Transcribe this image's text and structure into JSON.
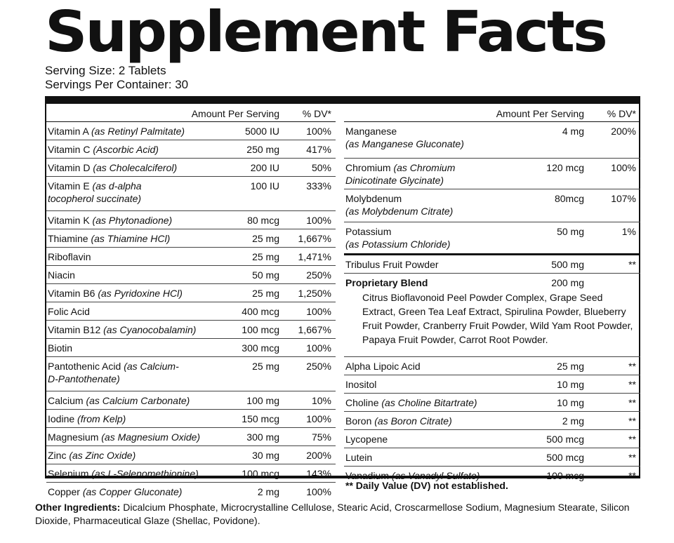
{
  "title": "Supplement Facts",
  "serving_size": "Serving Size: 2 Tablets",
  "servings_per_container": "Servings Per Container: 30",
  "header": {
    "amount": "Amount Per Serving",
    "dv": "% DV*"
  },
  "left_rows": [
    {
      "name": "Vitamin A ",
      "sub": "(as Retinyl Palmitate)",
      "amount": "5000 IU",
      "dv": "100%"
    },
    {
      "name": "Vitamin C ",
      "sub": "(Ascorbic Acid)",
      "amount": "250 mg",
      "dv": "417%"
    },
    {
      "name": "Vitamin D ",
      "sub": "(as Cholecalciferol)",
      "amount": "200 IU",
      "dv": "50%"
    },
    {
      "name": "Vitamin E ",
      "sub": "(as d-alpha",
      "sub2": "tocopherol succinate)",
      "amount": "100 IU",
      "dv": "333%"
    },
    {
      "name": "Vitamin K ",
      "sub": "(as Phytonadione)",
      "amount": "80 mcg",
      "dv": "100%"
    },
    {
      "name": "Thiamine ",
      "sub": "(as Thiamine HCl)",
      "amount": "25 mg",
      "dv": "1,667%"
    },
    {
      "name": "Riboflavin",
      "sub": "",
      "amount": "25 mg",
      "dv": "1,471%"
    },
    {
      "name": "Niacin",
      "sub": "",
      "amount": "50 mg",
      "dv": "250%"
    },
    {
      "name": "Vitamin B6 ",
      "sub": "(as Pyridoxine HCl)",
      "amount": "25 mg",
      "dv": "1,250%"
    },
    {
      "name": "Folic Acid",
      "sub": "",
      "amount": "400 mcg",
      "dv": "100%"
    },
    {
      "name": "Vitamin B12 ",
      "sub": "(as Cyanocobalamin)",
      "amount": "100 mcg",
      "dv": "1,667%"
    },
    {
      "name": "Biotin",
      "sub": "",
      "amount": "300 mcg",
      "dv": "100%"
    },
    {
      "name": "Pantothenic Acid ",
      "sub": "(as Calcium-",
      "sub2": "D-Pantothenate)",
      "amount": "25 mg",
      "dv": "250%"
    },
    {
      "name": "Calcium ",
      "sub": "(as Calcium Carbonate)",
      "amount": "100 mg",
      "dv": "10%"
    },
    {
      "name": "Iodine ",
      "sub": "(from Kelp)",
      "amount": "150 mcg",
      "dv": "100%"
    },
    {
      "name": "Magnesium ",
      "sub": "(as Magnesium Oxide)",
      "amount": "300 mg",
      "dv": "75%"
    },
    {
      "name": "Zinc ",
      "sub": "(as Zinc Oxide)",
      "amount": "30 mg",
      "dv": "200%"
    },
    {
      "name": "Selenium ",
      "sub": "(as L-Selenomethionine)",
      "amount": "100 mcg",
      "dv": "143%"
    },
    {
      "name": "Copper ",
      "sub": "(as Copper Gluconate)",
      "amount": "2 mg",
      "dv": "100%"
    }
  ],
  "right_rows_top": [
    {
      "name": "Manganese",
      "sub2": "(as Manganese Gluconate)",
      "amount": "4 mg",
      "dv": "200%"
    },
    {
      "name": "Chromium ",
      "sub": "(as Chromium",
      "sub2": "Dinicotinate Glycinate)",
      "amount": "120 mcg",
      "dv": "100%"
    },
    {
      "name": "Molybdenum",
      "sub2": "(as Molybdenum Citrate)",
      "amount": "80mcg",
      "dv": "107%"
    },
    {
      "name": "Potassium",
      "sub2": "(as Potassium Chloride)",
      "amount": "50 mg",
      "dv": "1%"
    }
  ],
  "tribulus": {
    "name": "Tribulus Fruit Powder",
    "amount": "500 mg",
    "dv": "**"
  },
  "blend": {
    "name": "Proprietary Blend",
    "amount": "200 mg",
    "description": "Citrus Bioflavonoid Peel Powder Complex, Grape Seed Extract, Green Tea Leaf Extract, Spirulina Powder, Blueberry Fruit Powder, Cranberry Fruit Powder, Wild Yam Root Powder, Papaya Fruit Powder, Carrot Root Powder."
  },
  "right_rows_bottom": [
    {
      "name": "Alpha Lipoic Acid",
      "sub": "",
      "amount": "25 mg",
      "dv": "**"
    },
    {
      "name": "Inositol",
      "sub": "",
      "amount": "10 mg",
      "dv": "**"
    },
    {
      "name": "Choline ",
      "sub": "(as Choline Bitartrate)",
      "amount": "10 mg",
      "dv": "**"
    },
    {
      "name": "Boron ",
      "sub": "(as Boron Citrate)",
      "amount": "2 mg",
      "dv": "**"
    },
    {
      "name": "Lycopene",
      "sub": "",
      "amount": "500 mcg",
      "dv": "**"
    },
    {
      "name": "Lutein",
      "sub": "",
      "amount": "500 mcg",
      "dv": "**"
    },
    {
      "name": "Vanadium ",
      "sub": "(as Vanadyl Sulfate)",
      "amount": "100 mcg",
      "dv": "**"
    }
  ],
  "footnote": "** Daily Value (DV) not established.",
  "other_ingredients": {
    "label": "Other Ingredients:",
    "text": " Dicalcium Phosphate, Microcrystalline Cellulose, Stearic Acid, Croscarmellose Sodium, Magnesium Stearate, Silicon Dioxide, Pharmaceutical Glaze (Shellac, Povidone)."
  }
}
